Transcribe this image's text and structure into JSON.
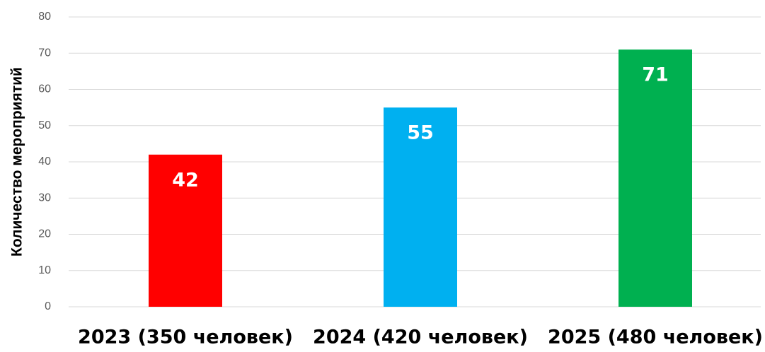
{
  "chart_data": {
    "type": "bar",
    "y_axis_label": "Количество мероприятий",
    "categories": [
      "2023 (350 человек)",
      "2024 (420 человек)",
      "2025 (480 человек)"
    ],
    "values": [
      42,
      55,
      71
    ],
    "colors": [
      "#ff0000",
      "#00b0f0",
      "#00b050"
    ],
    "ylim": [
      0,
      80
    ],
    "yticks": [
      0,
      10,
      20,
      30,
      40,
      50,
      60,
      70,
      80
    ],
    "grid": true
  }
}
